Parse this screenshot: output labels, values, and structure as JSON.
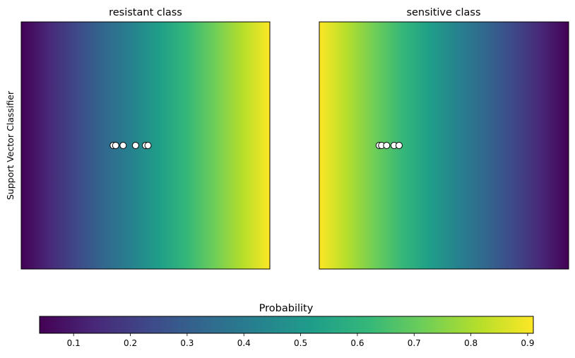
{
  "chart_data": {
    "type": "heatmap",
    "ylabel": "Support Vector Classifier",
    "panels": [
      {
        "title": "resistant class",
        "gradient_direction": "low-to-high (left to right)",
        "probability_range": [
          0.04,
          0.91
        ],
        "points": [
          {
            "x": 0.37,
            "y": 0.5
          },
          {
            "x": 0.38,
            "y": 0.5
          },
          {
            "x": 0.41,
            "y": 0.5
          },
          {
            "x": 0.46,
            "y": 0.5
          },
          {
            "x": 0.5,
            "y": 0.5
          },
          {
            "x": 0.51,
            "y": 0.5
          }
        ]
      },
      {
        "title": "sensitive class",
        "gradient_direction": "high-to-low (left to right)",
        "probability_range": [
          0.04,
          0.91
        ],
        "points": [
          {
            "x": 0.24,
            "y": 0.5
          },
          {
            "x": 0.25,
            "y": 0.5
          },
          {
            "x": 0.27,
            "y": 0.5
          },
          {
            "x": 0.3,
            "y": 0.5
          },
          {
            "x": 0.32,
            "y": 0.5
          }
        ]
      }
    ],
    "colorbar": {
      "title": "Probability",
      "colormap": "viridis",
      "range": [
        0.04,
        0.91
      ],
      "ticks": [
        0.1,
        0.2,
        0.3,
        0.4,
        0.5,
        0.6,
        0.7,
        0.8,
        0.9
      ],
      "tick_labels": [
        "0.1",
        "0.2",
        "0.3",
        "0.4",
        "0.5",
        "0.6",
        "0.7",
        "0.8",
        "0.9"
      ]
    },
    "colors": {
      "viridis": [
        "#440154",
        "#482878",
        "#3e4989",
        "#31688e",
        "#26828e",
        "#1f9e89",
        "#35b779",
        "#6ece58",
        "#b5de2b",
        "#fde725"
      ],
      "point_fill": "#ffffff",
      "point_edge": "#000000"
    }
  }
}
